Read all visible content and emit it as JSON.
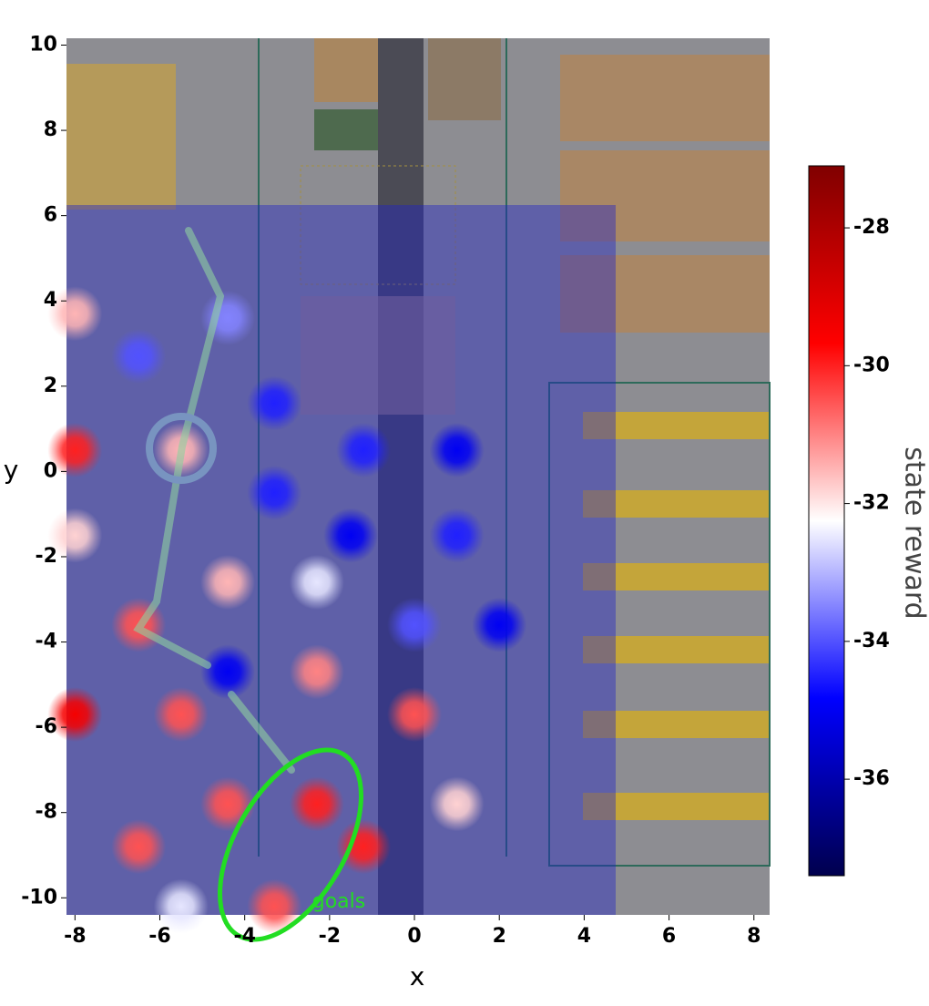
{
  "chart_data": {
    "type": "heatmap",
    "x_label": "x",
    "y_label": "y",
    "xlim": [
      -8.2,
      8.37
    ],
    "ylim": [
      -10.4,
      10.16
    ],
    "xticks": [
      -8,
      -6,
      -4,
      -2,
      0,
      2,
      4,
      6,
      8
    ],
    "yticks": [
      -10,
      -8,
      -6,
      -4,
      -2,
      0,
      2,
      4,
      6,
      8,
      10
    ],
    "x": [
      -8,
      -6.5,
      -4.4,
      -5.5,
      -8,
      -3.3,
      -3.3,
      -1.2,
      1.0,
      -1.5,
      1.0,
      -8,
      -4.4,
      -2.3,
      -6.5,
      0,
      2,
      -4.4,
      -2.3,
      -8,
      -5.5,
      0,
      -4.4,
      -2.3,
      1.0,
      -6.5,
      -1.2,
      -5.5,
      -3.3
    ],
    "y": [
      3.7,
      2.7,
      3.6,
      0.5,
      0.5,
      1.6,
      -0.5,
      0.5,
      0.5,
      -1.5,
      -1.5,
      -1.5,
      -2.6,
      -2.6,
      -3.6,
      -3.6,
      -3.6,
      -4.7,
      -4.7,
      -5.7,
      -5.7,
      -5.7,
      -7.8,
      -7.8,
      -7.8,
      -8.8,
      -8.8,
      -10.2,
      -10.2
    ],
    "values": [
      -31.5,
      -34,
      -33.5,
      -31.5,
      -30,
      -34.5,
      -34.5,
      -34.5,
      -35,
      -35,
      -34.5,
      -31.8,
      -31.5,
      -32.5,
      -30.5,
      -34,
      -35,
      -35,
      -31,
      -29.5,
      -30.5,
      -30.5,
      -30.5,
      -30,
      -31.8,
      -30.5,
      -30,
      -32.5,
      -30.5
    ],
    "colormap": "seismic",
    "clim": [
      -37.4,
      -27.1
    ],
    "colorbar_label": "state reward",
    "colorbar_ticks": [
      -28,
      -30,
      -32,
      -34,
      -36
    ],
    "annotation": "goals"
  }
}
